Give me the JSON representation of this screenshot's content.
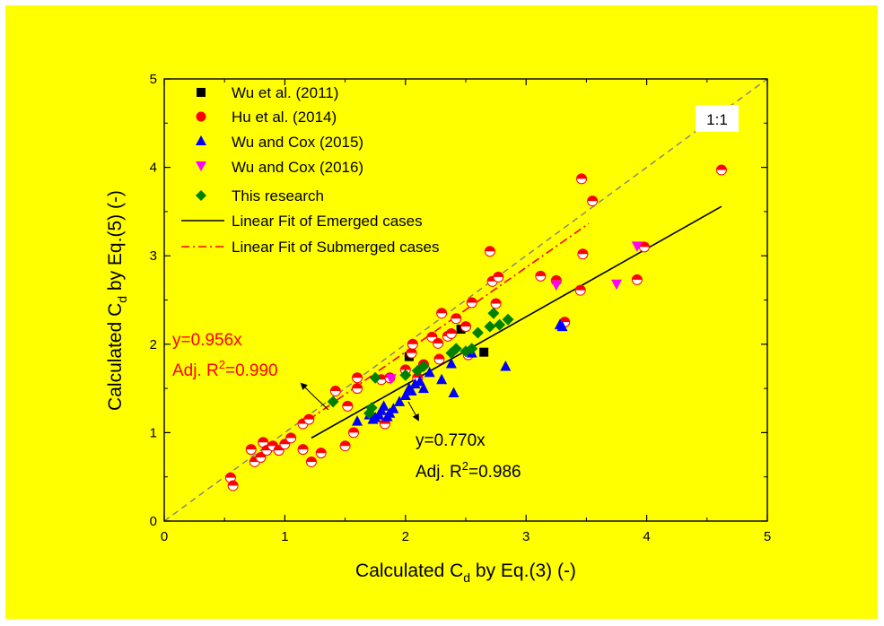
{
  "colors": {
    "background": "#ffff00",
    "wu2011": "#000000",
    "hu2014": "#ff0000",
    "wucox2015": "#0000ff",
    "wucox2016": "#ff00ff",
    "this_research": "#008000",
    "fit_emerged": "#000000",
    "fit_submerged": "#ff0000",
    "one_to_one": "#808080"
  },
  "chart_data": {
    "type": "scatter",
    "xlabel": {
      "prefix": "Calculated C",
      "sub": "d",
      "suffix": " by Eq.(3) (-)"
    },
    "ylabel": {
      "prefix": "Calculated C",
      "sub": "d",
      "suffix": " by Eq.(5) (-)"
    },
    "xlim": [
      0,
      5
    ],
    "ylim": [
      0,
      5
    ],
    "xticks": [
      "0",
      "1",
      "2",
      "3",
      "4",
      "5"
    ],
    "yticks": [
      "0",
      "1",
      "2",
      "3",
      "4",
      "5"
    ],
    "grid": false,
    "legend_position": "top-left",
    "series": [
      {
        "name": "Wu et al. (2011)",
        "marker": "square",
        "color": "#000000",
        "points": [
          [
            2.46,
            2.17
          ],
          [
            2.65,
            1.91
          ],
          [
            2.03,
            1.86
          ]
        ]
      },
      {
        "name": "Hu et al. (2014)",
        "marker": "circle",
        "color": "#ff0000",
        "points": [
          [
            0.55,
            0.49
          ],
          [
            0.57,
            0.4
          ],
          [
            0.72,
            0.81
          ],
          [
            0.75,
            0.67
          ],
          [
            0.8,
            0.72
          ],
          [
            0.82,
            0.89
          ],
          [
            0.85,
            0.8
          ],
          [
            0.9,
            0.85
          ],
          [
            0.95,
            0.8
          ],
          [
            1.0,
            0.87
          ],
          [
            1.05,
            0.94
          ],
          [
            1.15,
            0.81
          ],
          [
            1.15,
            1.1
          ],
          [
            1.2,
            1.15
          ],
          [
            1.22,
            0.67
          ],
          [
            1.3,
            0.77
          ],
          [
            1.42,
            1.47
          ],
          [
            1.5,
            0.85
          ],
          [
            1.52,
            1.3
          ],
          [
            1.57,
            1.0
          ],
          [
            1.6,
            1.5
          ],
          [
            1.6,
            1.62
          ],
          [
            1.8,
            1.6
          ],
          [
            1.83,
            1.1
          ],
          [
            1.87,
            1.62
          ],
          [
            2.0,
            1.71
          ],
          [
            2.05,
            1.9
          ],
          [
            2.06,
            2.0
          ],
          [
            2.1,
            1.62
          ],
          [
            2.15,
            1.77
          ],
          [
            2.22,
            2.08
          ],
          [
            2.27,
            2.01
          ],
          [
            2.28,
            1.83
          ],
          [
            2.3,
            2.35
          ],
          [
            2.35,
            2.09
          ],
          [
            2.38,
            2.12
          ],
          [
            2.42,
            2.29
          ],
          [
            2.5,
            2.2
          ],
          [
            2.52,
            1.88
          ],
          [
            2.55,
            2.47
          ],
          [
            2.7,
            3.05
          ],
          [
            2.72,
            2.71
          ],
          [
            2.75,
            2.46
          ],
          [
            2.77,
            2.76
          ],
          [
            3.12,
            2.77
          ],
          [
            3.25,
            2.72
          ],
          [
            3.32,
            2.25
          ],
          [
            3.45,
            2.61
          ],
          [
            3.46,
            3.87
          ],
          [
            3.47,
            3.02
          ],
          [
            3.55,
            3.62
          ],
          [
            3.92,
            2.73
          ],
          [
            3.98,
            3.1
          ],
          [
            4.62,
            3.97
          ]
        ]
      },
      {
        "name": "Wu and Cox (2015)",
        "marker": "triangle-up",
        "color": "#0000ff",
        "points": [
          [
            1.6,
            1.13
          ],
          [
            1.7,
            1.2
          ],
          [
            1.73,
            1.15
          ],
          [
            1.75,
            1.17
          ],
          [
            1.78,
            1.2
          ],
          [
            1.8,
            1.25
          ],
          [
            1.82,
            1.3
          ],
          [
            1.85,
            1.18
          ],
          [
            1.87,
            1.22
          ],
          [
            1.9,
            1.27
          ],
          [
            1.95,
            1.35
          ],
          [
            2.0,
            1.42
          ],
          [
            2.03,
            1.5
          ],
          [
            2.05,
            1.47
          ],
          [
            2.08,
            1.55
          ],
          [
            2.12,
            1.58
          ],
          [
            2.15,
            1.5
          ],
          [
            2.2,
            1.68
          ],
          [
            2.3,
            1.6
          ],
          [
            2.38,
            1.78
          ],
          [
            2.4,
            1.45
          ],
          [
            2.55,
            1.9
          ],
          [
            2.83,
            1.75
          ],
          [
            3.28,
            2.22
          ],
          [
            3.3,
            2.2
          ]
        ]
      },
      {
        "name": "Wu and Cox (2016)",
        "marker": "triangle-down",
        "color": "#ff00ff",
        "points": [
          [
            3.25,
            2.67
          ],
          [
            3.75,
            2.68
          ],
          [
            3.92,
            3.11
          ],
          [
            1.88,
            1.61
          ]
        ]
      },
      {
        "name": "This research",
        "marker": "diamond",
        "color": "#008000",
        "points": [
          [
            1.4,
            1.35
          ],
          [
            1.7,
            1.22
          ],
          [
            1.72,
            1.28
          ],
          [
            1.75,
            1.62
          ],
          [
            2.0,
            1.65
          ],
          [
            2.1,
            1.7
          ],
          [
            2.15,
            1.75
          ],
          [
            2.38,
            1.9
          ],
          [
            2.42,
            1.95
          ],
          [
            2.5,
            1.92
          ],
          [
            2.55,
            1.95
          ],
          [
            2.6,
            2.13
          ],
          [
            2.7,
            2.2
          ],
          [
            2.73,
            2.35
          ],
          [
            2.78,
            2.22
          ],
          [
            2.85,
            2.28
          ]
        ]
      }
    ],
    "fits": [
      {
        "name": "Linear Fit of Emerged cases",
        "slope": 0.77,
        "x_range": [
          1.22,
          4.62
        ],
        "style": "solid",
        "color": "#000000"
      },
      {
        "name": "Linear Fit of Submerged cases",
        "slope": 0.956,
        "x_range": [
          1.2,
          3.52
        ],
        "style": "dash-dot",
        "color": "#ff0000"
      }
    ],
    "reference_line": {
      "label": "1:1",
      "slope": 1.0
    },
    "annotations": {
      "submerged": {
        "equation": "y=0.956x",
        "r2_prefix": "Adj. R",
        "r2_sup": "2",
        "r2_value": "=0.990"
      },
      "emerged": {
        "equation": "y=0.770x",
        "r2_prefix": "Adj. R",
        "r2_sup": "2",
        "r2_value": "=0.986"
      }
    }
  }
}
